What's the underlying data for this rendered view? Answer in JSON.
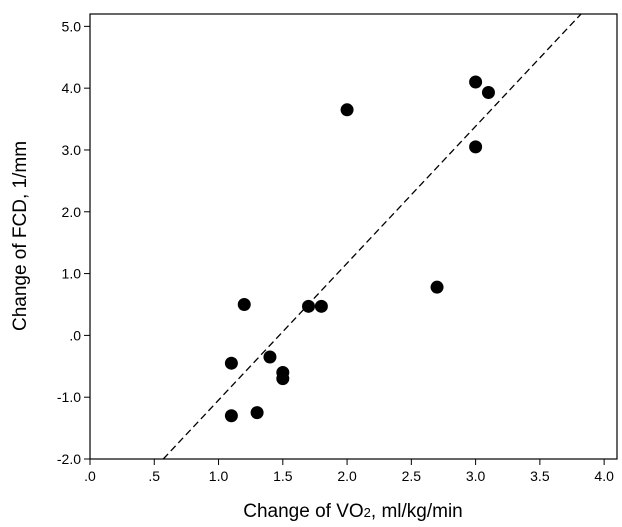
{
  "chart_data": {
    "type": "scatter",
    "title": "",
    "xlabel_parts": [
      "Change of VO",
      "2",
      ", ml/kg/min"
    ],
    "ylabel": "Change of FCD, 1/mm",
    "xlim": [
      0,
      4.1
    ],
    "ylim": [
      -2.0,
      5.2
    ],
    "x_ticks": [
      {
        "value": 0.0,
        "label": ".0"
      },
      {
        "value": 0.5,
        "label": ".5"
      },
      {
        "value": 1.0,
        "label": "1.0"
      },
      {
        "value": 1.5,
        "label": "1.5"
      },
      {
        "value": 2.0,
        "label": "2.0"
      },
      {
        "value": 2.5,
        "label": "2.5"
      },
      {
        "value": 3.0,
        "label": "3.0"
      },
      {
        "value": 3.5,
        "label": "3.5"
      },
      {
        "value": 4.0,
        "label": "4.0"
      }
    ],
    "y_ticks": [
      {
        "value": -2.0,
        "label": "-2.0"
      },
      {
        "value": -1.0,
        "label": "-1.0"
      },
      {
        "value": 0.0,
        "label": ".0"
      },
      {
        "value": 1.0,
        "label": "1.0"
      },
      {
        "value": 2.0,
        "label": "2.0"
      },
      {
        "value": 3.0,
        "label": "3.0"
      },
      {
        "value": 4.0,
        "label": "4.0"
      },
      {
        "value": 5.0,
        "label": "5.0"
      }
    ],
    "points": [
      {
        "x": 1.1,
        "y": -1.3
      },
      {
        "x": 1.3,
        "y": -1.25
      },
      {
        "x": 1.1,
        "y": -0.45
      },
      {
        "x": 1.4,
        "y": -0.35
      },
      {
        "x": 1.5,
        "y": -0.6
      },
      {
        "x": 1.5,
        "y": -0.7
      },
      {
        "x": 1.2,
        "y": 0.5
      },
      {
        "x": 1.7,
        "y": 0.47
      },
      {
        "x": 1.8,
        "y": 0.47
      },
      {
        "x": 2.0,
        "y": 3.65
      },
      {
        "x": 2.7,
        "y": 0.78
      },
      {
        "x": 3.0,
        "y": 4.1
      },
      {
        "x": 3.1,
        "y": 3.93
      },
      {
        "x": 3.0,
        "y": 3.05
      }
    ],
    "fit_line": {
      "x": [
        0.57,
        3.82
      ],
      "y": [
        -2.0,
        5.2
      ],
      "style": "dashed"
    },
    "grid": false,
    "marker_color": "#000000"
  }
}
